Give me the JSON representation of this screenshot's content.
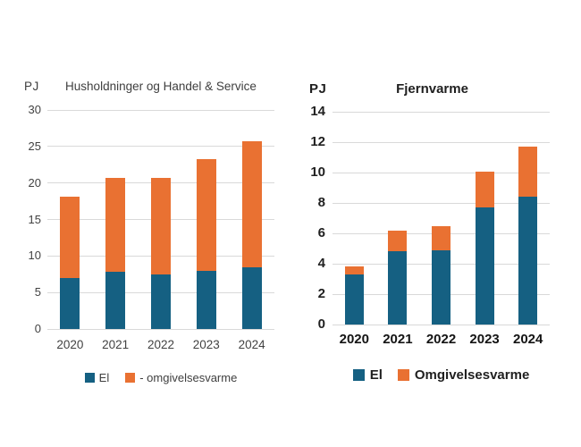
{
  "colors": {
    "el": "#156082",
    "omgivelsesvarme": "#E97132",
    "gridline": "#d9d9d9"
  },
  "chart_data": [
    {
      "type": "bar",
      "stacked": true,
      "title": "Husholdninger og Handel & Service",
      "ylabel": "PJ",
      "xlabel": "",
      "categories": [
        "2020",
        "2021",
        "2022",
        "2023",
        "2024"
      ],
      "series": [
        {
          "name": "El",
          "color": "#156082",
          "values": [
            7.0,
            7.8,
            7.5,
            8.0,
            8.5
          ]
        },
        {
          "name": "- omgivelsesvarme",
          "color": "#E97132",
          "values": [
            11.1,
            12.9,
            13.2,
            15.3,
            17.2
          ]
        }
      ],
      "totals": [
        18.1,
        20.7,
        20.7,
        23.3,
        25.7
      ],
      "ylim": [
        0,
        30
      ],
      "ytick_step": 5,
      "grid": true,
      "legend_position": "bottom"
    },
    {
      "type": "bar",
      "stacked": true,
      "title": "Fjernvarme",
      "ylabel": "PJ",
      "xlabel": "",
      "categories": [
        "2020",
        "2021",
        "2022",
        "2023",
        "2024"
      ],
      "series": [
        {
          "name": "El",
          "color": "#156082",
          "values": [
            3.3,
            4.8,
            4.9,
            7.7,
            8.4
          ]
        },
        {
          "name": "Omgivelsesvarme",
          "color": "#E97132",
          "values": [
            0.55,
            1.4,
            1.6,
            2.35,
            3.3
          ]
        }
      ],
      "totals": [
        3.85,
        6.2,
        6.5,
        10.05,
        11.7
      ],
      "ylim": [
        0,
        14
      ],
      "ytick_step": 2,
      "grid": true,
      "legend_position": "bottom"
    }
  ]
}
